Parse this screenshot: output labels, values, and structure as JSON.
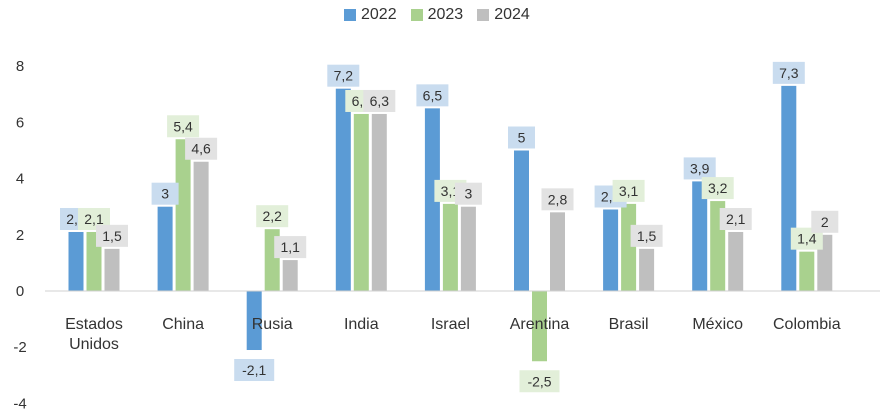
{
  "chart_data": {
    "type": "bar",
    "categories": [
      "Estados Unidos",
      "China",
      "Rusia",
      "India",
      "Israel",
      "Arentina",
      "Brasil",
      "México",
      "Colombia"
    ],
    "series": [
      {
        "name": "2022",
        "color": "#5b9bd5",
        "label_bg": "#c9dcef",
        "values": [
          2.1,
          3,
          -2.1,
          7.2,
          6.5,
          5,
          2.9,
          3.9,
          7.3
        ]
      },
      {
        "name": "2023",
        "color": "#a9d18e",
        "label_bg": "#e2efd9",
        "values": [
          2.1,
          5.4,
          2.2,
          6.3,
          3.1,
          -2.5,
          3.1,
          3.2,
          1.4
        ]
      },
      {
        "name": "2024",
        "color": "#bfbfbf",
        "label_bg": "#e2e2e2",
        "values": [
          1.5,
          4.6,
          1.1,
          6.3,
          3,
          2.8,
          1.5,
          2.1,
          2
        ]
      }
    ],
    "category_labels": [
      [
        "Estados",
        "Unidos"
      ],
      [
        "China"
      ],
      [
        "Rusia"
      ],
      [
        "India"
      ],
      [
        "Israel"
      ],
      [
        "Arentina"
      ],
      [
        "Brasil"
      ],
      [
        "México"
      ],
      [
        "Colombia"
      ]
    ],
    "data_labels": [
      [
        "2,1",
        "3",
        "-2,1",
        "7,2",
        "6,5",
        "5",
        "2,9",
        "3,9",
        "7,3"
      ],
      [
        "2,1",
        "5,4",
        "2,2",
        "6,3",
        "3,1",
        "-2,5",
        "3,1",
        "3,2",
        "1,4"
      ],
      [
        "1,5",
        "4,6",
        "1,1",
        "6,3",
        "3",
        "2,8",
        "1,5",
        "2,1",
        "2"
      ]
    ],
    "y_ticks": [
      8,
      6,
      4,
      2,
      0,
      -2,
      -4
    ],
    "ylim": [
      -4,
      8
    ],
    "grid": false,
    "legend_position": "top-center",
    "title": "",
    "xlabel": "",
    "ylabel": ""
  }
}
